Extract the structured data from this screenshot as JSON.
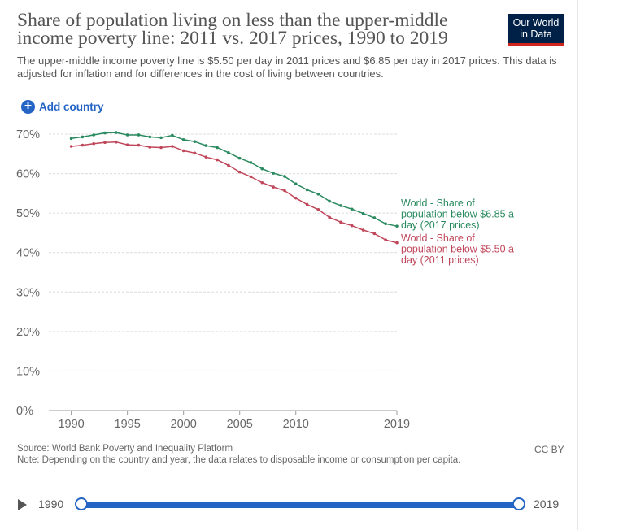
{
  "header": {
    "title": "Share of population living on less than the upper-middle income poverty line: 2011 vs. 2017 prices, 1990 to 2019",
    "subtitle": "The upper-middle income poverty line is $5.50 per day in 2011 prices and $6.85 per day in 2017 prices. This data is adjusted for inflation and for differences in the cost of living between countries.",
    "logo_line1": "Our World",
    "logo_line2": "in Data"
  },
  "controls": {
    "add_country_label": "Add country",
    "add_country_icon": "plus-circle-icon"
  },
  "chart_data": {
    "type": "line",
    "title": "Share of population living on less than the upper-middle income poverty line: 2011 vs. 2017 prices, 1990 to 2019",
    "xlabel": "",
    "ylabel": "",
    "xlim": [
      1988,
      2019
    ],
    "ylim": [
      0,
      70
    ],
    "x_ticks": [
      1990,
      1995,
      2000,
      2005,
      2010,
      2019
    ],
    "y_ticks": [
      0,
      10,
      20,
      30,
      40,
      50,
      60,
      70
    ],
    "y_tick_labels": [
      "0%",
      "10%",
      "20%",
      "30%",
      "40%",
      "50%",
      "60%",
      "70%"
    ],
    "grid": "horizontal-dashed",
    "x": [
      1990,
      1991,
      1992,
      1993,
      1994,
      1995,
      1996,
      1997,
      1998,
      1999,
      2000,
      2001,
      2002,
      2003,
      2004,
      2005,
      2006,
      2007,
      2008,
      2009,
      2010,
      2011,
      2012,
      2013,
      2014,
      2015,
      2016,
      2017,
      2018,
      2019
    ],
    "series": [
      {
        "name": "World - Share of population below $6.85 a day (2017 prices)",
        "color": "#2a8a5f",
        "values": [
          68.9,
          69.3,
          69.8,
          70.3,
          70.4,
          69.8,
          69.8,
          69.3,
          69.1,
          69.7,
          68.6,
          68.1,
          67.1,
          66.6,
          65.3,
          63.9,
          62.8,
          61.2,
          60.1,
          59.3,
          57.4,
          55.9,
          54.8,
          53.0,
          51.9,
          51.0,
          49.9,
          48.8,
          47.3,
          46.7
        ]
      },
      {
        "name": "World - Share of population below $5.50 a day (2011 prices)",
        "color": "#c0465a",
        "values": [
          66.9,
          67.2,
          67.6,
          67.9,
          68.0,
          67.3,
          67.2,
          66.7,
          66.6,
          66.9,
          65.8,
          65.2,
          64.2,
          63.5,
          62.1,
          60.4,
          59.2,
          57.7,
          56.6,
          55.7,
          53.8,
          52.2,
          50.9,
          48.9,
          47.7,
          46.8,
          45.7,
          44.8,
          43.2,
          42.5
        ]
      }
    ]
  },
  "footer": {
    "source": "Source: World Bank Poverty and Inequality Platform",
    "note": "Note: Depending on the country and year, the data relates to disposable income or consumption per capita.",
    "license": "CC BY"
  },
  "timeline": {
    "start_year": "1990",
    "end_year": "2019",
    "start_fraction": 0,
    "end_fraction": 1,
    "play_icon": "play-icon"
  }
}
